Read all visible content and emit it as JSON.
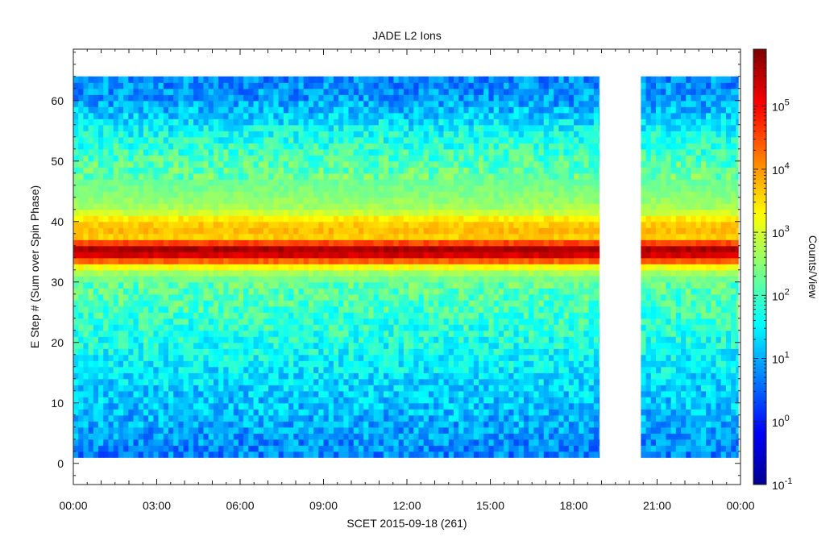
{
  "chart_data": {
    "type": "heatmap",
    "title": "JADE L2 Ions",
    "xlabel": "SCET 2015-09-18 (261)",
    "ylabel": "E Step # (Sum over Spin Phase)",
    "x_unit": "hours",
    "xlim": [
      0,
      24
    ],
    "ylim": [
      -3.5,
      68.5
    ],
    "x_tick_values": [
      0,
      3,
      6,
      9,
      12,
      15,
      18,
      21,
      24
    ],
    "x_tick_labels": [
      "00:00",
      "03:00",
      "06:00",
      "09:00",
      "12:00",
      "15:00",
      "18:00",
      "21:00",
      "00:00"
    ],
    "y_tick_values": [
      0,
      10,
      20,
      30,
      40,
      50,
      60
    ],
    "y_tick_labels": [
      "0",
      "10",
      "20",
      "30",
      "40",
      "50",
      "60"
    ],
    "data_segments": [
      {
        "start": "00:00",
        "end": "18:55"
      },
      {
        "start": "20:25",
        "end": "23:55"
      }
    ],
    "e_step_range": [
      1,
      64
    ],
    "colorbar": {
      "label": "Counts/View",
      "scale": "log",
      "range": [
        0.1,
        800000
      ],
      "tick_labels": [
        {
          "base": "10",
          "exp": "-1",
          "value": 0.1
        },
        {
          "base": "10",
          "exp": "0",
          "value": 1
        },
        {
          "base": "10",
          "exp": "1",
          "value": 10
        },
        {
          "base": "10",
          "exp": "2",
          "value": 100
        },
        {
          "base": "10",
          "exp": "3",
          "value": 1000
        },
        {
          "base": "10",
          "exp": "4",
          "value": 10000
        },
        {
          "base": "10",
          "exp": "5",
          "value": 100000
        }
      ]
    },
    "energy_step_profile": {
      "e_step": [
        1,
        5,
        10,
        15,
        20,
        25,
        30,
        32,
        33,
        34,
        35,
        36,
        37,
        38,
        39,
        40,
        41,
        42,
        45,
        50,
        55,
        60,
        64
      ],
      "counts_per_view": [
        5,
        8,
        15,
        25,
        50,
        90,
        150,
        600,
        5000,
        100000,
        400000,
        400000,
        3000,
        6000,
        5000,
        4000,
        1500,
        500,
        250,
        120,
        40,
        8,
        6
      ]
    }
  }
}
